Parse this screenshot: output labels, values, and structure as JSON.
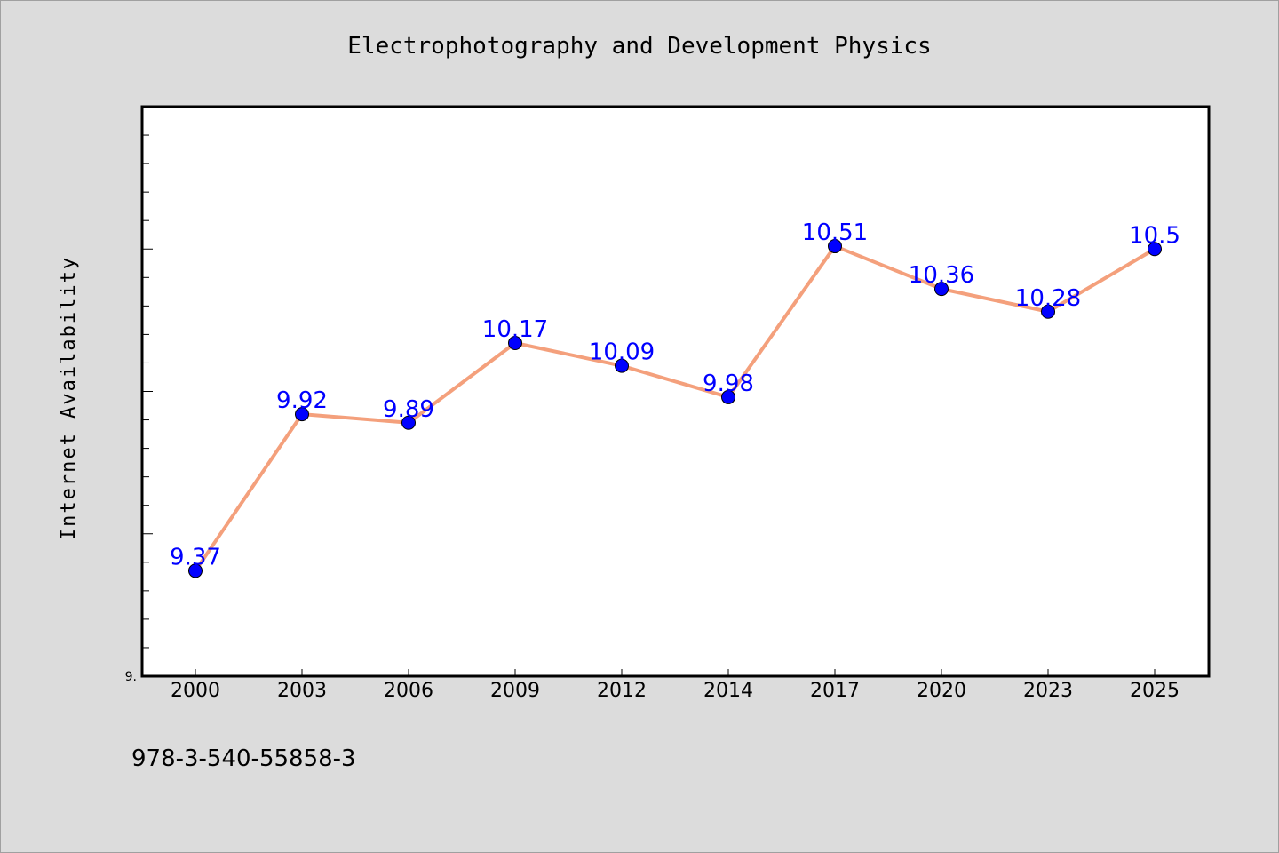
{
  "chart_data": {
    "type": "line",
    "title": "Electrophotography and Development Physics",
    "xlabel": "",
    "ylabel": "Internet Availability",
    "categories": [
      "2000",
      "2003",
      "2006",
      "2009",
      "2012",
      "2014",
      "2017",
      "2020",
      "2023",
      "2025"
    ],
    "series": [
      {
        "values": [
          9.37,
          9.92,
          9.89,
          10.17,
          10.09,
          9.98,
          10.51,
          10.36,
          10.28,
          10.5
        ],
        "labels": [
          "9.37",
          "9.92",
          "9.89",
          "10.17",
          "10.09",
          "9.98",
          "10.51",
          "10.36",
          "10.28",
          "10.5"
        ],
        "line_color": "#f4a07c",
        "marker_color": "#0000ff"
      }
    ],
    "ylim": [
      9.0,
      11.0
    ],
    "y_tick_labels": [
      "9."
    ],
    "grid": false,
    "legend": "none",
    "background": "#ffffff"
  },
  "footer": {
    "isbn": "978-3-540-55858-3"
  },
  "colors": {
    "page_background": "#dcdcdc",
    "label_color": "#0000ff"
  }
}
